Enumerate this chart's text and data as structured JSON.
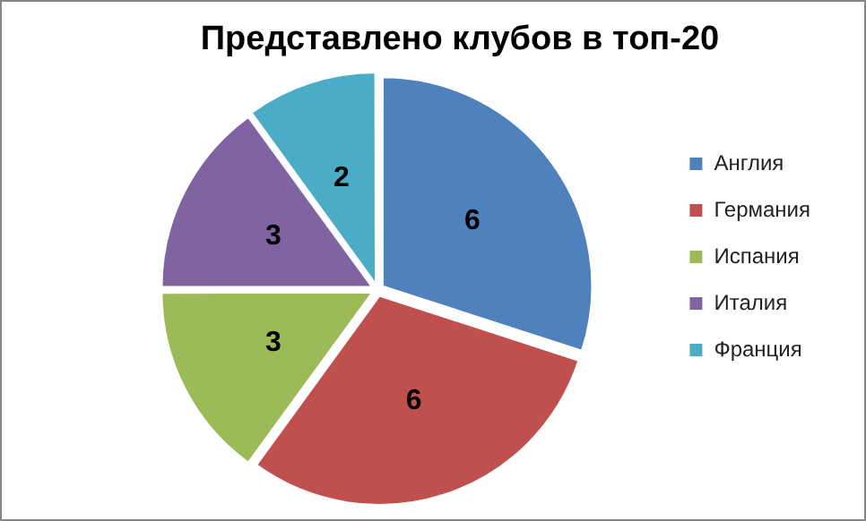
{
  "chart_data": {
    "type": "pie",
    "title": "Представлено клубов в топ-20",
    "categories": [
      "Англия",
      "Германия",
      "Испания",
      "Италия",
      "Франция"
    ],
    "values": [
      6,
      6,
      3,
      3,
      2
    ],
    "colors": [
      "#4f81bd",
      "#c0504d",
      "#9bbb59",
      "#8064a2",
      "#4bacc6"
    ],
    "data_labels": true,
    "legend": "right"
  }
}
